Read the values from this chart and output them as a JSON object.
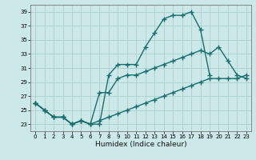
{
  "background_color": "#cce8e8",
  "grid_color": "#aacfcf",
  "line_color": "#1a6e6e",
  "marker": "+",
  "marker_size": 4,
  "line_width": 1.0,
  "xlabel": "Humidex (Indice chaleur)",
  "xlabel_fontsize": 6.5,
  "xlim": [
    -0.5,
    23.5
  ],
  "ylim": [
    22.0,
    40.0
  ],
  "yticks": [
    23,
    25,
    27,
    29,
    31,
    33,
    35,
    37,
    39
  ],
  "xticks": [
    0,
    1,
    2,
    3,
    4,
    5,
    6,
    7,
    8,
    9,
    10,
    11,
    12,
    13,
    14,
    15,
    16,
    17,
    18,
    19,
    20,
    21,
    22,
    23
  ],
  "series": [
    {
      "x": [
        0,
        1,
        2,
        3,
        4,
        5,
        6,
        7,
        8,
        9,
        10,
        11,
        12,
        13,
        14,
        15,
        16,
        17,
        18,
        19
      ],
      "y": [
        26,
        25,
        24,
        24,
        23,
        23.5,
        23,
        23,
        30,
        31.5,
        31.5,
        31.5,
        34,
        36,
        38,
        38.5,
        38.5,
        39,
        36.5,
        30
      ]
    },
    {
      "x": [
        0,
        1,
        2,
        3,
        4,
        5,
        6,
        7,
        8,
        9,
        10,
        11,
        12,
        13,
        14,
        15,
        16,
        17,
        18,
        19,
        20,
        21,
        22,
        23
      ],
      "y": [
        26,
        25,
        24,
        24,
        23,
        23.5,
        23,
        27.5,
        27.5,
        29.5,
        30,
        30,
        30.5,
        31,
        31.5,
        32,
        32.5,
        33,
        33.5,
        33,
        34,
        32,
        30,
        29.5
      ]
    },
    {
      "x": [
        0,
        1,
        2,
        3,
        4,
        5,
        6,
        7,
        8,
        9,
        10,
        11,
        12,
        13,
        14,
        15,
        16,
        17,
        18,
        19,
        20,
        21,
        22,
        23
      ],
      "y": [
        26,
        25,
        24,
        24,
        23,
        23.5,
        23,
        23.5,
        24,
        24.5,
        25,
        25.5,
        26,
        26.5,
        27,
        27.5,
        28,
        28.5,
        29,
        29.5,
        29.5,
        29.5,
        29.5,
        30
      ]
    }
  ]
}
